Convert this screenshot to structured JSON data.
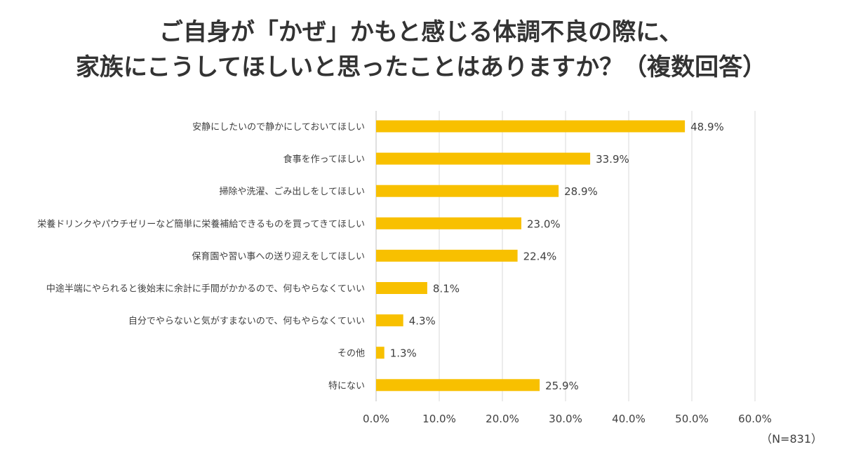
{
  "title_lines": [
    "ご自身が「かぜ」かもと感じる体調不良の際に、",
    "家族にこうしてほしいと思ったことはありますか？（複数回答）"
  ],
  "note": "（N=831）",
  "colors": {
    "bar": "#F8C000",
    "grid": "#D9D9D9",
    "text": "#404040"
  },
  "chart_data": {
    "type": "bar",
    "orientation": "horizontal",
    "categories": [
      "安静にしたいので静かにしておいてほしい",
      "食事を作ってほしい",
      "掃除や洗濯、ごみ出しをしてほしい",
      "栄養ドリンクやパウチゼリーなど簡単に栄養補給できるものを買ってきてほしい",
      "保育園や習い事への送り迎えをしてほしい",
      "中途半端にやられると後始末に余計に手間がかかるので、何もやらなくていい",
      "自分でやらないと気がすまないので、何もやらなくていい",
      "その他",
      "特にない"
    ],
    "values": [
      48.9,
      33.9,
      28.9,
      23.0,
      22.4,
      8.1,
      4.3,
      1.3,
      25.9
    ],
    "value_labels": [
      "48.9%",
      "33.9%",
      "28.9%",
      "23.0%",
      "22.4%",
      "8.1%",
      "4.3%",
      "1.3%",
      "25.9%"
    ],
    "xlim": [
      0,
      60
    ],
    "xticks": [
      "0.0%",
      "10.0%",
      "20.0%",
      "30.0%",
      "40.0%",
      "50.0%",
      "60.0%"
    ],
    "grid": true,
    "legend": "none"
  }
}
